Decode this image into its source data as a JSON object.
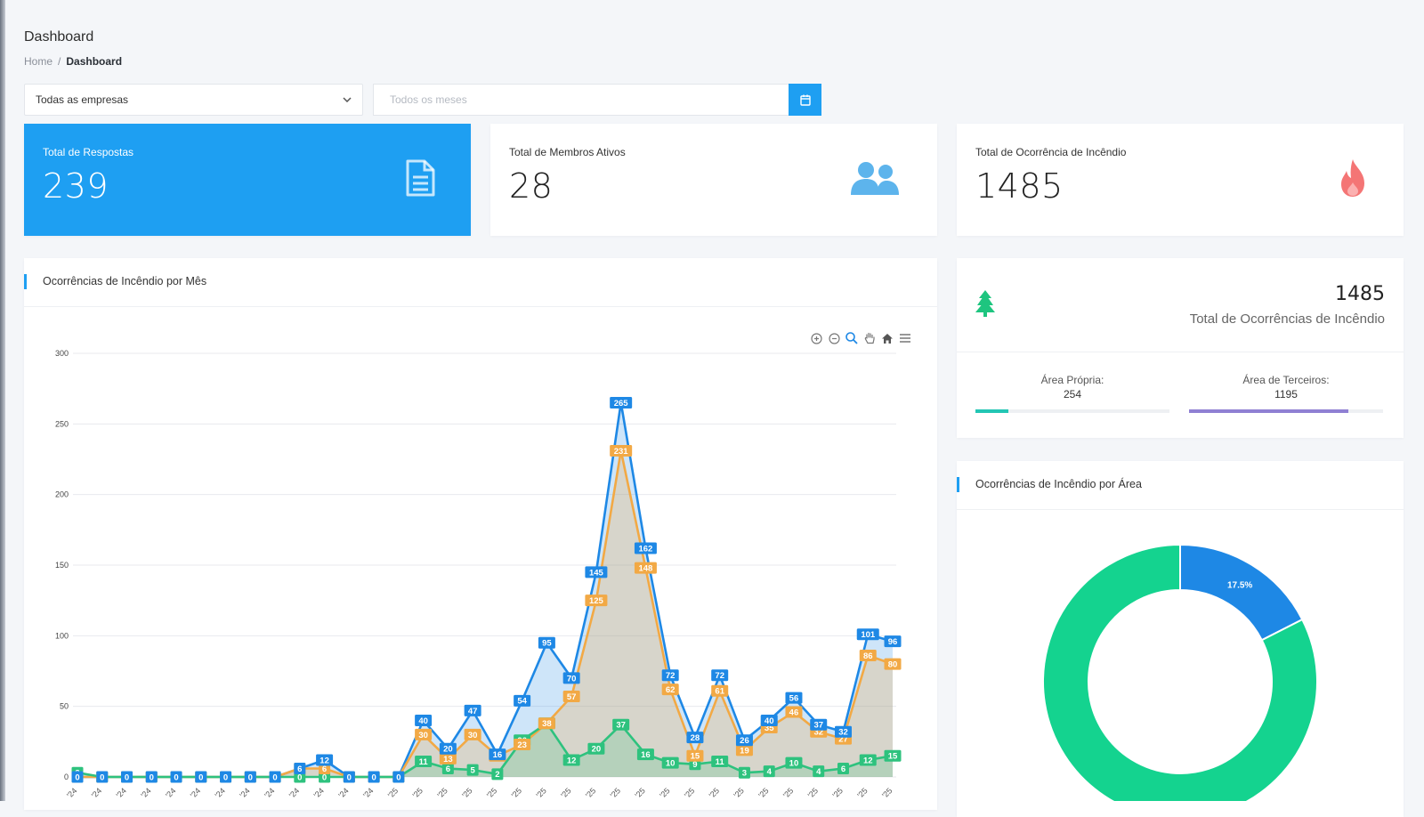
{
  "page": {
    "title": "Dashboard",
    "breadcrumb": {
      "home": "Home",
      "separator": "/",
      "current": "Dashboard"
    }
  },
  "filters": {
    "company_value": "Todas as empresas",
    "month_placeholder": "Todos os meses"
  },
  "stats": [
    {
      "label": "Total de Respostas",
      "value": "239",
      "icon": "document-icon",
      "color": "#1e9ff2"
    },
    {
      "label": "Total de Membros Ativos",
      "value": "28",
      "icon": "users-icon",
      "color": "#5db4ec"
    },
    {
      "label": "Total de Ocorrência de Incêndio",
      "value": "1485",
      "icon": "fire-icon",
      "color": "#f26f6f"
    }
  ],
  "line_chart": {
    "title": "Ocorrências de Incêndio por Mês",
    "toolbar": [
      "zoom-in-icon",
      "zoom-out-icon",
      "zoom-select-icon",
      "pan-icon",
      "home-icon",
      "menu-icon"
    ]
  },
  "totals": {
    "value": "1485",
    "label": "Total de Ocorrências de Incêndio",
    "icon": "tree-icon",
    "areas": [
      {
        "label": "Área Própria:",
        "value": "254",
        "fraction": 0.17,
        "color": "#23c6b4"
      },
      {
        "label": "Área de Terceiros:",
        "value": "1195",
        "fraction": 0.82,
        "color": "#8f80d3"
      }
    ]
  },
  "donut_chart": {
    "title": "Ocorrências de Incêndio por Área"
  },
  "chart_data": [
    {
      "type": "area",
      "title": "Ocorrências de Incêndio por Mês",
      "ylim": [
        0,
        300
      ],
      "yticks": [
        0,
        50,
        100,
        150,
        200,
        250,
        300
      ],
      "grid": true,
      "x_tick_label": "'24 / '25",
      "series": [
        {
          "color": "#1e88e5",
          "values": [
            0,
            0,
            0,
            0,
            0,
            0,
            0,
            0,
            0,
            6,
            12,
            0,
            0,
            0,
            40,
            20,
            47,
            16,
            54,
            95,
            70,
            145,
            265,
            162,
            72,
            28,
            72,
            26,
            40,
            56,
            37,
            32,
            101,
            96
          ]
        },
        {
          "color": "#f2a945",
          "values": [
            0,
            0,
            0,
            0,
            0,
            0,
            0,
            0,
            0,
            6,
            6,
            0,
            0,
            0,
            30,
            13,
            30,
            15,
            23,
            38,
            57,
            125,
            231,
            148,
            62,
            15,
            61,
            19,
            35,
            46,
            32,
            27,
            86,
            80
          ]
        },
        {
          "color": "#2ec27e",
          "values": [
            3,
            0,
            0,
            0,
            0,
            0,
            0,
            0,
            0,
            0,
            0,
            0,
            0,
            0,
            11,
            6,
            5,
            2,
            26,
            38,
            12,
            20,
            37,
            16,
            10,
            9,
            11,
            3,
            4,
            10,
            4,
            6,
            12,
            15
          ]
        }
      ]
    },
    {
      "type": "pie",
      "title": "Ocorrências de Incêndio por Área",
      "slices": [
        {
          "label": "17.5%",
          "value": 17.5,
          "color": "#1e88e5"
        },
        {
          "label": "82.5%",
          "value": 82.5,
          "color": "#14d38f"
        }
      ]
    }
  ]
}
